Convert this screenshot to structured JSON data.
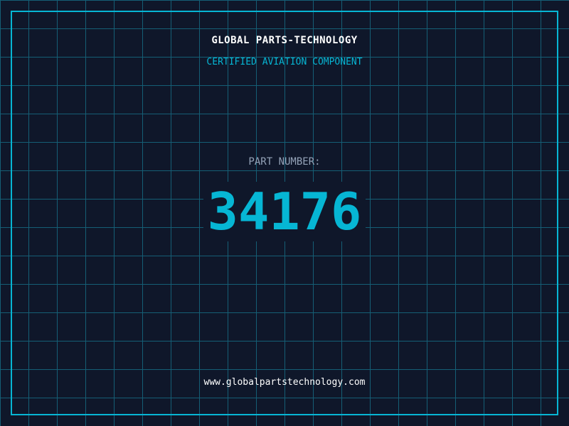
{
  "company": "GLOBAL PARTS-TECHNOLOGY",
  "subtitle": "CERTIFIED AVIATION COMPONENT",
  "part_label": "PART NUMBER:",
  "part_number": "34176",
  "website": "www.globalpartstechnology.com",
  "colors": {
    "background": "#0f172a",
    "accent": "#06b6d4",
    "grid": "#155e75"
  }
}
